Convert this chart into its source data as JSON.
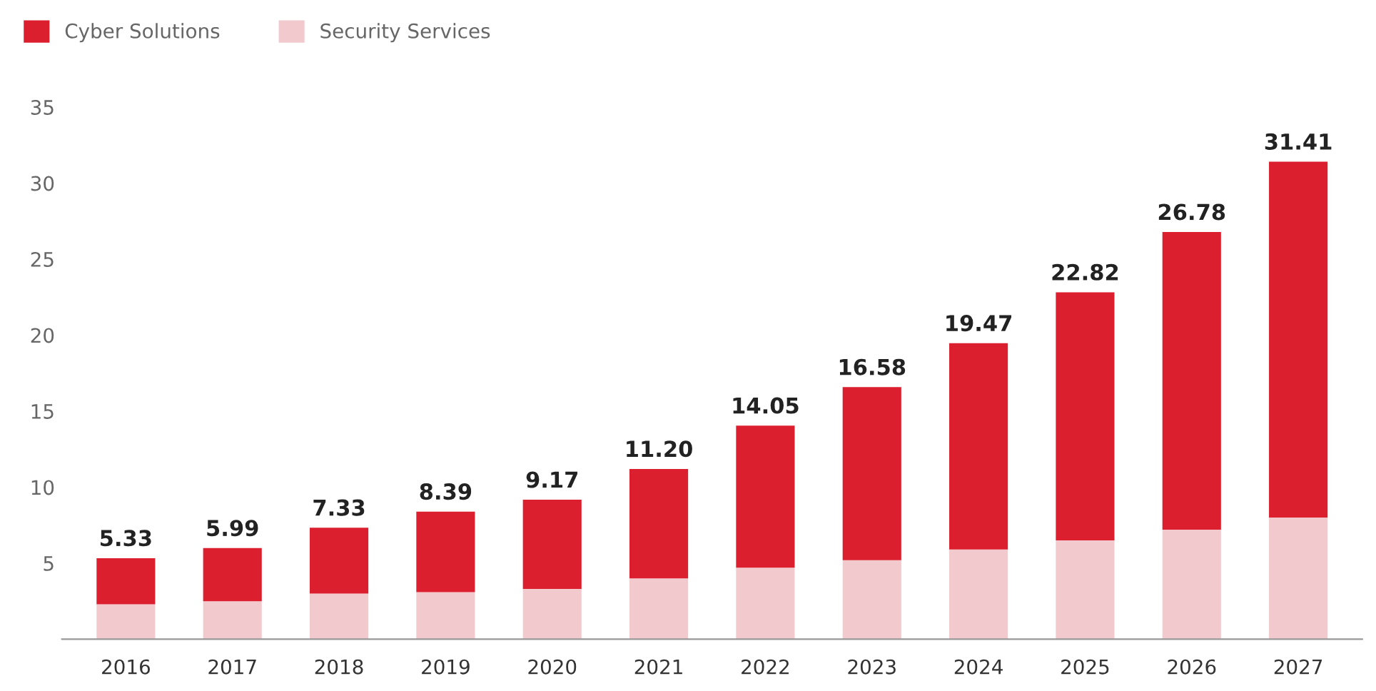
{
  "chart_data": {
    "type": "bar",
    "stacked": true,
    "categories": [
      "2016",
      "2017",
      "2018",
      "2019",
      "2020",
      "2021",
      "2022",
      "2023",
      "2024",
      "2025",
      "2026",
      "2027"
    ],
    "series": [
      {
        "name": "Security Services",
        "color": "#f2c9cd",
        "values": [
          2.3,
          2.5,
          3.0,
          3.1,
          3.3,
          4.0,
          4.7,
          5.2,
          5.9,
          6.5,
          7.2,
          8.0
        ]
      },
      {
        "name": "Cyber Solutions",
        "color": "#dc1f2e",
        "values": [
          3.03,
          3.49,
          4.33,
          5.29,
          5.87,
          7.2,
          9.35,
          11.38,
          13.57,
          16.32,
          19.58,
          23.41
        ]
      }
    ],
    "totals": [
      "5.33",
      "5.99",
      "7.33",
      "8.39",
      "9.17",
      "11.20",
      "14.05",
      "16.58",
      "19.47",
      "22.82",
      "26.78",
      "31.41"
    ],
    "ylim": [
      0,
      35
    ],
    "yticks": [
      5,
      10,
      15,
      20,
      25,
      30,
      35
    ],
    "grid": false,
    "legend": "top left"
  }
}
